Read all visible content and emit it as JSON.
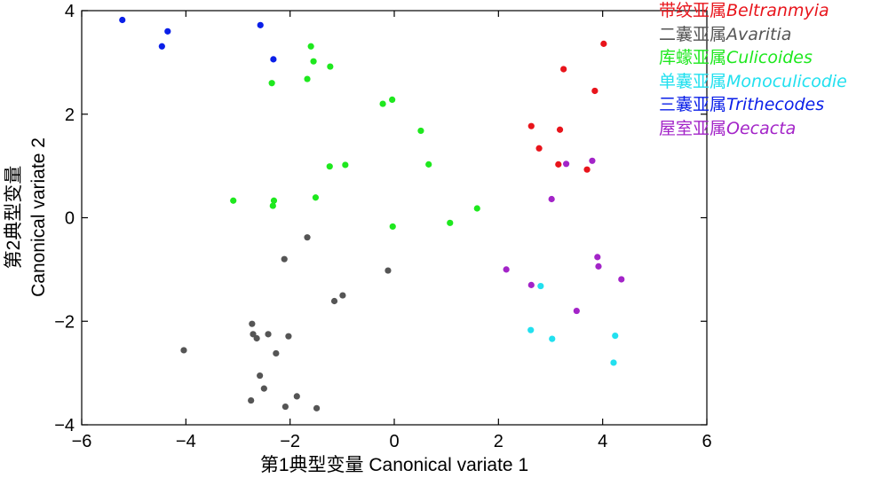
{
  "chart_data": {
    "type": "scatter",
    "xlabel": "第1典型变量 Canonical variate 1",
    "ylabel_cn": "第2典型变量",
    "ylabel_en": "Canonical variate 2",
    "xlim": [
      -6,
      6
    ],
    "ylim": [
      -4,
      4
    ],
    "xticks": [
      -6,
      -4,
      -2,
      0,
      2,
      4,
      6
    ],
    "yticks": [
      -4,
      -2,
      0,
      2,
      4
    ],
    "xtick_labels": [
      "−6",
      "−4",
      "−2",
      "0",
      "2",
      "4",
      "6"
    ],
    "ytick_labels": [
      "−4",
      "−2",
      "0",
      "2",
      "4"
    ],
    "grid": false,
    "legend_position": "top-right",
    "series": [
      {
        "name_cn": "带纹亚属",
        "name_latin": "Beltranmyia",
        "color": "#e8141b",
        "points": [
          [
            4.02,
            3.36
          ],
          [
            3.25,
            2.87
          ],
          [
            3.85,
            2.45
          ],
          [
            2.63,
            1.77
          ],
          [
            3.18,
            1.7
          ],
          [
            2.78,
            1.34
          ],
          [
            3.15,
            1.03
          ],
          [
            3.7,
            0.93
          ]
        ]
      },
      {
        "name_cn": "二囊亚属",
        "name_latin": "Avaritia",
        "color": "#555555",
        "points": [
          [
            -1.67,
            -0.38
          ],
          [
            -2.11,
            -0.8
          ],
          [
            -0.12,
            -1.02
          ],
          [
            -0.99,
            -1.5
          ],
          [
            -1.15,
            -1.61
          ],
          [
            -2.73,
            -2.05
          ],
          [
            -2.71,
            -2.25
          ],
          [
            -2.64,
            -2.33
          ],
          [
            -2.42,
            -2.25
          ],
          [
            -2.03,
            -2.29
          ],
          [
            -4.04,
            -2.56
          ],
          [
            -2.27,
            -2.62
          ],
          [
            -2.58,
            -3.05
          ],
          [
            -2.5,
            -3.3
          ],
          [
            -2.75,
            -3.53
          ],
          [
            -1.87,
            -3.45
          ],
          [
            -2.09,
            -3.65
          ],
          [
            -1.49,
            -3.68
          ]
        ]
      },
      {
        "name_cn": "库蠓亚属",
        "name_latin": "Culicoides",
        "color": "#1ee81e",
        "points": [
          [
            -1.6,
            3.31
          ],
          [
            -1.55,
            3.02
          ],
          [
            -1.23,
            2.92
          ],
          [
            -1.67,
            2.68
          ],
          [
            -2.35,
            2.6
          ],
          [
            -0.04,
            2.28
          ],
          [
            -0.22,
            2.2
          ],
          [
            0.51,
            1.68
          ],
          [
            -1.24,
            0.99
          ],
          [
            -0.94,
            1.02
          ],
          [
            0.66,
            1.03
          ],
          [
            -1.51,
            0.39
          ],
          [
            -3.09,
            0.33
          ],
          [
            -2.31,
            0.33
          ],
          [
            -2.33,
            0.23
          ],
          [
            1.59,
            0.18
          ],
          [
            1.07,
            -0.1
          ],
          [
            -0.03,
            -0.17
          ]
        ]
      },
      {
        "name_cn": "单囊亚属",
        "name_latin": "Monoculicodie",
        "color": "#22e0ef",
        "points": [
          [
            2.81,
            -1.32
          ],
          [
            2.62,
            -2.17
          ],
          [
            3.03,
            -2.34
          ],
          [
            4.24,
            -2.28
          ],
          [
            4.21,
            -2.8
          ]
        ]
      },
      {
        "name_cn": "三囊亚属",
        "name_latin": "Trithecodes",
        "color": "#0a1fe8",
        "points": [
          [
            -5.22,
            3.82
          ],
          [
            -2.57,
            3.72
          ],
          [
            -4.35,
            3.6
          ],
          [
            -4.46,
            3.31
          ],
          [
            -2.32,
            3.06
          ]
        ]
      },
      {
        "name_cn": "屋室亚属",
        "name_latin": "Oecacta",
        "color": "#a324c8",
        "points": [
          [
            3.8,
            1.1
          ],
          [
            3.3,
            1.04
          ],
          [
            3.02,
            0.36
          ],
          [
            3.9,
            -0.76
          ],
          [
            3.92,
            -0.94
          ],
          [
            2.15,
            -1.0
          ],
          [
            4.36,
            -1.19
          ],
          [
            2.63,
            -1.3
          ],
          [
            3.5,
            -1.8
          ]
        ]
      }
    ]
  }
}
